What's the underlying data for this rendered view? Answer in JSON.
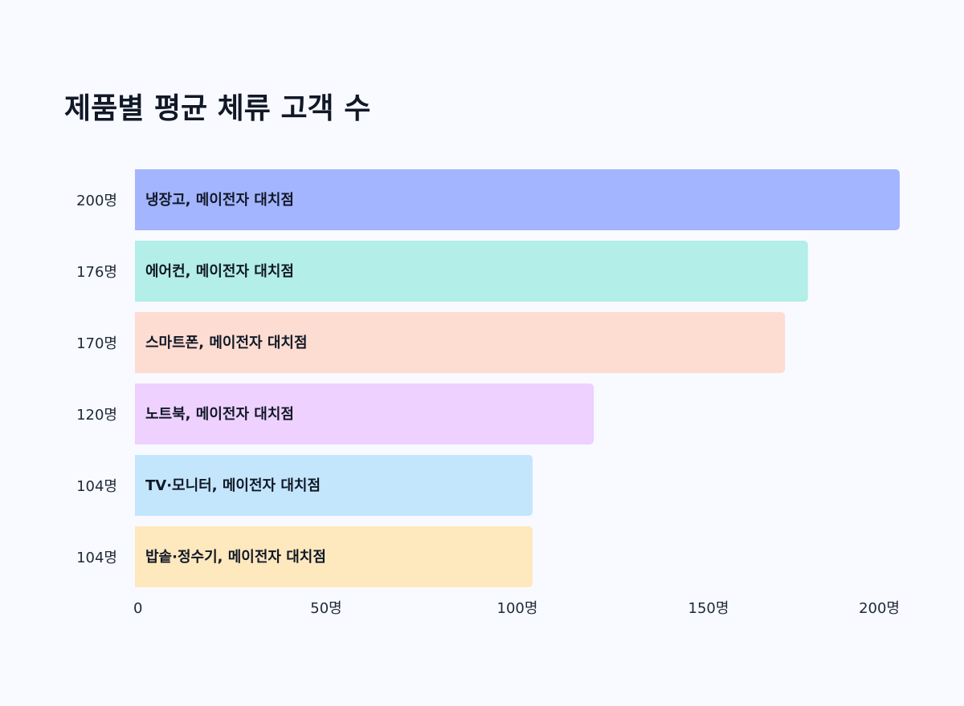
{
  "chart_data": {
    "type": "bar",
    "orientation": "horizontal",
    "title": "제품별 평균 체류 고객 수",
    "categories": [
      "냉장고, 메이전자 대치점",
      "에어컨, 메이전자 대치점",
      "스마트폰, 메이전자 대치점",
      "노트북, 메이전자 대치점",
      "TV·모니터, 메이전자 대치점",
      "밥솥·정수기, 메이전자 대치점"
    ],
    "values": [
      200,
      176,
      170,
      120,
      104,
      104
    ],
    "value_labels": [
      "200명",
      "176명",
      "170명",
      "120명",
      "104명",
      "104명"
    ],
    "colors": [
      "#a3b5ff",
      "#b3eee8",
      "#fddcd2",
      "#eed1ff",
      "#c3e6fd",
      "#fee8bd"
    ],
    "xlim": [
      0,
      200
    ],
    "x_ticks": [
      0,
      50,
      100,
      150,
      200
    ],
    "x_tick_labels": [
      "0",
      "50명",
      "100명",
      "150명",
      "200명"
    ],
    "grid": false,
    "legend": "none"
  }
}
